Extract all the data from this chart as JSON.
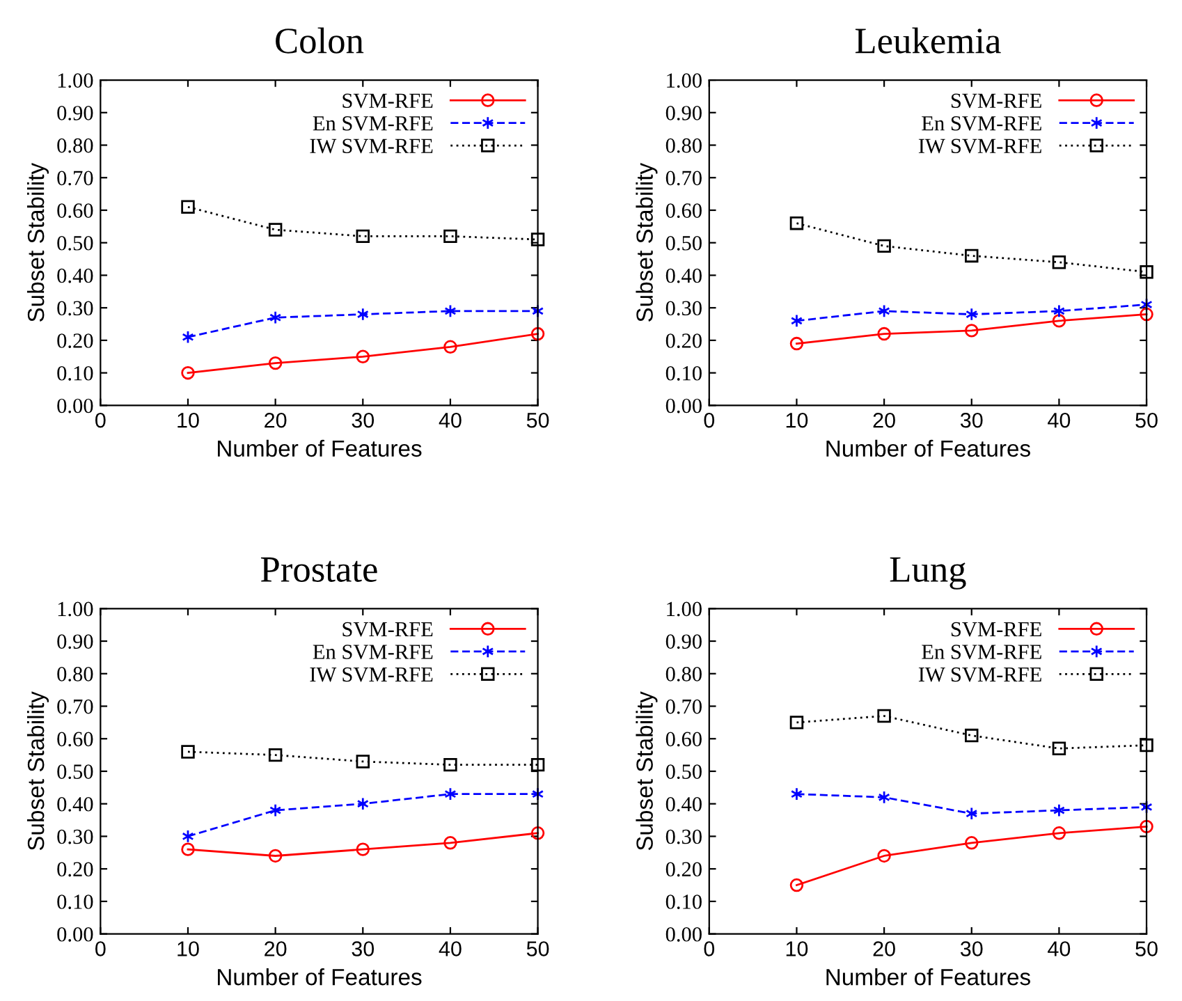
{
  "chart_data": [
    {
      "type": "line",
      "title": "Colon",
      "xlabel": "Number of Features",
      "ylabel": "Subset Stability",
      "x": [
        10,
        20,
        30,
        40,
        50
      ],
      "xlim": [
        0,
        50
      ],
      "xticks": [
        0,
        10,
        20,
        30,
        40,
        50
      ],
      "ylim": [
        0,
        1
      ],
      "yticks": [
        {
          "value": 0,
          "label": "0.00"
        },
        {
          "value": 0.1,
          "label": "0.10"
        },
        {
          "value": 0.2,
          "label": "0.20"
        },
        {
          "value": 0.3,
          "label": "0.30"
        },
        {
          "value": 0.4,
          "label": "0.40"
        },
        {
          "value": 0.5,
          "label": "0.50"
        },
        {
          "value": 0.6,
          "label": "0.60"
        },
        {
          "value": 0.7,
          "label": "0.70"
        },
        {
          "value": 0.8,
          "label": "0.80"
        },
        {
          "value": 0.9,
          "label": "0.90"
        },
        {
          "value": 1,
          "label": "1.00"
        }
      ],
      "legend": "top right",
      "series": [
        {
          "name": "SVM-RFE",
          "color": "#ff0000",
          "marker": "circle",
          "line_style": "solid",
          "values": [
            0.1,
            0.13,
            0.15,
            0.18,
            0.22
          ]
        },
        {
          "name": "En SVM-RFE",
          "color": "#0000ff",
          "marker": "cross",
          "line_style": "dashed",
          "values": [
            0.21,
            0.27,
            0.28,
            0.29,
            0.29
          ]
        },
        {
          "name": "IW SVM-RFE",
          "color": "#000000",
          "marker": "square",
          "line_style": "dotted",
          "values": [
            0.61,
            0.54,
            0.52,
            0.52,
            0.51
          ]
        }
      ]
    },
    {
      "type": "line",
      "title": "Leukemia",
      "xlabel": "Number of Features",
      "ylabel": "Subset Stability",
      "x": [
        10,
        20,
        30,
        40,
        50
      ],
      "xlim": [
        0,
        50
      ],
      "xticks": [
        0,
        10,
        20,
        30,
        40,
        50
      ],
      "ylim": [
        0,
        1
      ],
      "yticks": [
        {
          "value": 0,
          "label": "0.00"
        },
        {
          "value": 0.1,
          "label": "0.10"
        },
        {
          "value": 0.2,
          "label": "0.20"
        },
        {
          "value": 0.3,
          "label": "0.30"
        },
        {
          "value": 0.4,
          "label": "0.40"
        },
        {
          "value": 0.5,
          "label": "0.50"
        },
        {
          "value": 0.6,
          "label": "0.60"
        },
        {
          "value": 0.7,
          "label": "0.70"
        },
        {
          "value": 0.8,
          "label": "0.80"
        },
        {
          "value": 0.9,
          "label": "0.90"
        },
        {
          "value": 1,
          "label": "1.00"
        }
      ],
      "legend": "top right",
      "series": [
        {
          "name": "SVM-RFE",
          "color": "#ff0000",
          "marker": "circle",
          "line_style": "solid",
          "values": [
            0.19,
            0.22,
            0.23,
            0.26,
            0.28
          ]
        },
        {
          "name": "En SVM-RFE",
          "color": "#0000ff",
          "marker": "cross",
          "line_style": "dashed",
          "values": [
            0.26,
            0.29,
            0.28,
            0.29,
            0.31
          ]
        },
        {
          "name": "IW SVM-RFE",
          "color": "#000000",
          "marker": "square",
          "line_style": "dotted",
          "values": [
            0.56,
            0.49,
            0.46,
            0.44,
            0.41
          ]
        }
      ]
    },
    {
      "type": "line",
      "title": "Prostate",
      "xlabel": "Number of Features",
      "ylabel": "Subset Stability",
      "x": [
        10,
        20,
        30,
        40,
        50
      ],
      "xlim": [
        0,
        50
      ],
      "xticks": [
        0,
        10,
        20,
        30,
        40,
        50
      ],
      "ylim": [
        0,
        1
      ],
      "yticks": [
        {
          "value": 0,
          "label": "0.00"
        },
        {
          "value": 0.1,
          "label": "0.10"
        },
        {
          "value": 0.2,
          "label": "0.20"
        },
        {
          "value": 0.3,
          "label": "0.30"
        },
        {
          "value": 0.4,
          "label": "0.40"
        },
        {
          "value": 0.5,
          "label": "0.50"
        },
        {
          "value": 0.6,
          "label": "0.60"
        },
        {
          "value": 0.7,
          "label": "0.70"
        },
        {
          "value": 0.8,
          "label": "0.80"
        },
        {
          "value": 0.9,
          "label": "0.90"
        },
        {
          "value": 1,
          "label": "1.00"
        }
      ],
      "legend": "top right",
      "series": [
        {
          "name": "SVM-RFE",
          "color": "#ff0000",
          "marker": "circle",
          "line_style": "solid",
          "values": [
            0.26,
            0.24,
            0.26,
            0.28,
            0.31
          ]
        },
        {
          "name": "En SVM-RFE",
          "color": "#0000ff",
          "marker": "cross",
          "line_style": "dashed",
          "values": [
            0.3,
            0.38,
            0.4,
            0.43,
            0.43
          ]
        },
        {
          "name": "IW SVM-RFE",
          "color": "#000000",
          "marker": "square",
          "line_style": "dotted",
          "values": [
            0.56,
            0.55,
            0.53,
            0.52,
            0.52
          ]
        }
      ]
    },
    {
      "type": "line",
      "title": "Lung",
      "xlabel": "Number of Features",
      "ylabel": "Subset Stability",
      "x": [
        10,
        20,
        30,
        40,
        50
      ],
      "xlim": [
        0,
        50
      ],
      "xticks": [
        0,
        10,
        20,
        30,
        40,
        50
      ],
      "ylim": [
        0,
        1
      ],
      "yticks": [
        {
          "value": 0,
          "label": "0.00"
        },
        {
          "value": 0.1,
          "label": "0.10"
        },
        {
          "value": 0.2,
          "label": "0.20"
        },
        {
          "value": 0.3,
          "label": "0.30"
        },
        {
          "value": 0.4,
          "label": "0.40"
        },
        {
          "value": 0.5,
          "label": "0.50"
        },
        {
          "value": 0.6,
          "label": "0.60"
        },
        {
          "value": 0.7,
          "label": "0.70"
        },
        {
          "value": 0.8,
          "label": "0.80"
        },
        {
          "value": 0.9,
          "label": "0.90"
        },
        {
          "value": 1,
          "label": "1.00"
        }
      ],
      "legend": "top right",
      "series": [
        {
          "name": "SVM-RFE",
          "color": "#ff0000",
          "marker": "circle",
          "line_style": "solid",
          "values": [
            0.15,
            0.24,
            0.28,
            0.31,
            0.33
          ]
        },
        {
          "name": "En SVM-RFE",
          "color": "#0000ff",
          "marker": "cross",
          "line_style": "dashed",
          "values": [
            0.43,
            0.42,
            0.37,
            0.38,
            0.39
          ]
        },
        {
          "name": "IW SVM-RFE",
          "color": "#000000",
          "marker": "square",
          "line_style": "dotted",
          "values": [
            0.65,
            0.67,
            0.61,
            0.57,
            0.58
          ]
        }
      ]
    }
  ]
}
